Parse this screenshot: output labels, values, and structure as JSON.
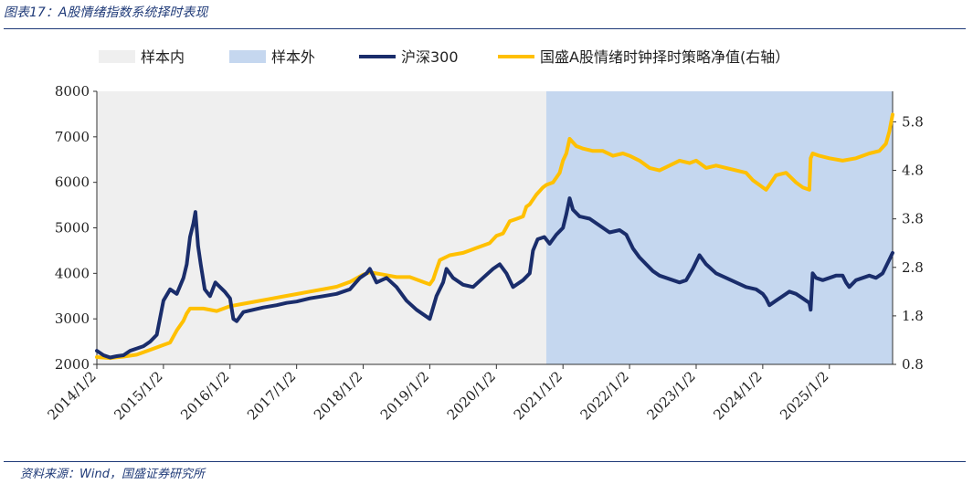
{
  "header": {
    "title": "图表17：A股情绪指数系统择时表现"
  },
  "footer": {
    "source": "资料来源：Wind，国盛证券研究所"
  },
  "colors": {
    "in_sample_bg": "#efefef",
    "out_sample_bg": "#c5d7ef",
    "hs300": "#1a2d6b",
    "strategy": "#ffc000",
    "header": "#1f3a78"
  },
  "legend": [
    {
      "label": "样本内",
      "kind": "area",
      "color": "#efefef"
    },
    {
      "label": "样本外",
      "kind": "area",
      "color": "#c5d7ef"
    },
    {
      "label": "沪深300",
      "kind": "line",
      "color": "#1a2d6b"
    },
    {
      "label": "国盛A股情绪时钟择时策略净值(右轴）",
      "kind": "line",
      "color": "#ffc000"
    }
  ],
  "chart_data": {
    "type": "line",
    "title": "",
    "xlabel": "",
    "ylabel": "",
    "x_ticks": [
      "2014/1/2",
      "2015/1/2",
      "2016/1/2",
      "2017/1/2",
      "2018/1/2",
      "2019/1/2",
      "2020/1/2",
      "2021/1/2",
      "2022/1/2",
      "2023/1/2",
      "2024/1/2",
      "2025/1/2"
    ],
    "ylim_left": [
      2000,
      8000
    ],
    "yticks_left": [
      "2000",
      "3000",
      "4000",
      "5000",
      "6000",
      "7000",
      "8000"
    ],
    "ylim_right": [
      0.8,
      6.43
    ],
    "yticks_right": [
      "0.8",
      "1.8",
      "2.8",
      "3.8",
      "4.8",
      "5.8"
    ],
    "x_range": [
      2014.0,
      2025.95
    ],
    "in_sample_end": 2020.75,
    "series": [
      {
        "name": "沪深300",
        "axis": "left",
        "x": [
          2014.0,
          2014.1,
          2014.2,
          2014.3,
          2014.4,
          2014.5,
          2014.6,
          2014.7,
          2014.8,
          2014.9,
          2015.0,
          2015.1,
          2015.2,
          2015.3,
          2015.35,
          2015.4,
          2015.45,
          2015.48,
          2015.52,
          2015.56,
          2015.62,
          2015.7,
          2015.78,
          2015.85,
          2015.92,
          2016.0,
          2016.05,
          2016.1,
          2016.2,
          2016.35,
          2016.5,
          2016.7,
          2016.85,
          2017.0,
          2017.2,
          2017.4,
          2017.6,
          2017.8,
          2017.95,
          2018.05,
          2018.1,
          2018.2,
          2018.35,
          2018.5,
          2018.65,
          2018.8,
          2018.95,
          2019.0,
          2019.1,
          2019.2,
          2019.25,
          2019.35,
          2019.5,
          2019.65,
          2019.8,
          2019.95,
          2020.05,
          2020.15,
          2020.25,
          2020.4,
          2020.5,
          2020.55,
          2020.62,
          2020.72,
          2020.8,
          2020.9,
          2021.0,
          2021.05,
          2021.1,
          2021.15,
          2021.25,
          2021.4,
          2021.55,
          2021.7,
          2021.85,
          2021.95,
          2022.05,
          2022.15,
          2022.25,
          2022.35,
          2022.45,
          2022.55,
          2022.65,
          2022.75,
          2022.85,
          2022.95,
          2023.05,
          2023.15,
          2023.3,
          2023.45,
          2023.6,
          2023.75,
          2023.9,
          2024.0,
          2024.05,
          2024.1,
          2024.2,
          2024.3,
          2024.4,
          2024.5,
          2024.6,
          2024.7,
          2024.72,
          2024.75,
          2024.8,
          2024.9,
          2025.0,
          2025.1,
          2025.2,
          2025.25,
          2025.3,
          2025.4,
          2025.5,
          2025.6,
          2025.7,
          2025.8,
          2025.9,
          2025.95
        ],
        "values": [
          2300,
          2200,
          2150,
          2180,
          2200,
          2300,
          2350,
          2400,
          2500,
          2650,
          3400,
          3650,
          3550,
          3900,
          4200,
          4800,
          5100,
          5350,
          4600,
          4200,
          3650,
          3500,
          3800,
          3700,
          3600,
          3450,
          3000,
          2950,
          3150,
          3200,
          3250,
          3300,
          3350,
          3380,
          3450,
          3500,
          3550,
          3650,
          3900,
          4000,
          4100,
          3800,
          3900,
          3700,
          3400,
          3200,
          3050,
          3000,
          3500,
          3800,
          4100,
          3900,
          3750,
          3700,
          3900,
          4100,
          4200,
          4000,
          3700,
          3850,
          4000,
          4500,
          4750,
          4800,
          4650,
          4850,
          5000,
          5300,
          5650,
          5400,
          5250,
          5200,
          5050,
          4900,
          4950,
          4850,
          4550,
          4350,
          4200,
          4050,
          3950,
          3900,
          3850,
          3800,
          3850,
          4100,
          4400,
          4200,
          4000,
          3900,
          3800,
          3700,
          3650,
          3550,
          3450,
          3300,
          3400,
          3500,
          3600,
          3550,
          3450,
          3350,
          3200,
          4000,
          3900,
          3850,
          3900,
          3950,
          3950,
          3800,
          3700,
          3850,
          3900,
          3950,
          3900,
          4000,
          4300,
          4450
        ]
      },
      {
        "name": "国盛A股情绪时钟择时策略净值(右轴）",
        "axis": "right",
        "x": [
          2014.0,
          2014.2,
          2014.4,
          2014.6,
          2014.8,
          2015.0,
          2015.1,
          2015.2,
          2015.3,
          2015.35,
          2015.4,
          2015.6,
          2015.8,
          2016.0,
          2016.2,
          2016.4,
          2016.6,
          2016.8,
          2017.0,
          2017.2,
          2017.4,
          2017.6,
          2017.8,
          2018.0,
          2018.1,
          2018.3,
          2018.5,
          2018.7,
          2018.9,
          2019.0,
          2019.05,
          2019.1,
          2019.15,
          2019.3,
          2019.5,
          2019.6,
          2019.7,
          2019.9,
          2020.0,
          2020.1,
          2020.2,
          2020.3,
          2020.4,
          2020.45,
          2020.5,
          2020.6,
          2020.7,
          2020.75,
          2020.85,
          2020.95,
          2021.0,
          2021.05,
          2021.1,
          2021.2,
          2021.3,
          2021.45,
          2021.6,
          2021.75,
          2021.9,
          2022.0,
          2022.15,
          2022.3,
          2022.45,
          2022.6,
          2022.75,
          2022.9,
          2023.0,
          2023.15,
          2023.3,
          2023.45,
          2023.6,
          2023.75,
          2023.85,
          2023.95,
          2024.0,
          2024.05,
          2024.1,
          2024.2,
          2024.35,
          2024.5,
          2024.6,
          2024.7,
          2024.72,
          2024.75,
          2024.85,
          2025.0,
          2025.2,
          2025.4,
          2025.6,
          2025.75,
          2025.85,
          2025.9,
          2025.95
        ],
        "values": [
          0.95,
          0.93,
          0.96,
          1.0,
          1.1,
          1.2,
          1.25,
          1.5,
          1.7,
          1.85,
          1.95,
          1.95,
          1.9,
          2.0,
          2.05,
          2.1,
          2.15,
          2.2,
          2.25,
          2.3,
          2.35,
          2.4,
          2.5,
          2.65,
          2.7,
          2.65,
          2.6,
          2.6,
          2.5,
          2.45,
          2.55,
          2.75,
          2.95,
          3.05,
          3.1,
          3.15,
          3.2,
          3.3,
          3.45,
          3.5,
          3.75,
          3.8,
          3.85,
          4.05,
          4.1,
          4.3,
          4.45,
          4.5,
          4.55,
          4.75,
          5.0,
          5.15,
          5.45,
          5.3,
          5.25,
          5.2,
          5.2,
          5.1,
          5.15,
          5.1,
          5.0,
          4.85,
          4.8,
          4.9,
          5.0,
          4.95,
          5.0,
          4.85,
          4.9,
          4.85,
          4.8,
          4.75,
          4.6,
          4.5,
          4.45,
          4.4,
          4.5,
          4.7,
          4.75,
          4.55,
          4.45,
          4.4,
          5.05,
          5.15,
          5.1,
          5.05,
          5.0,
          5.05,
          5.15,
          5.2,
          5.35,
          5.6,
          5.95
        ]
      }
    ]
  }
}
